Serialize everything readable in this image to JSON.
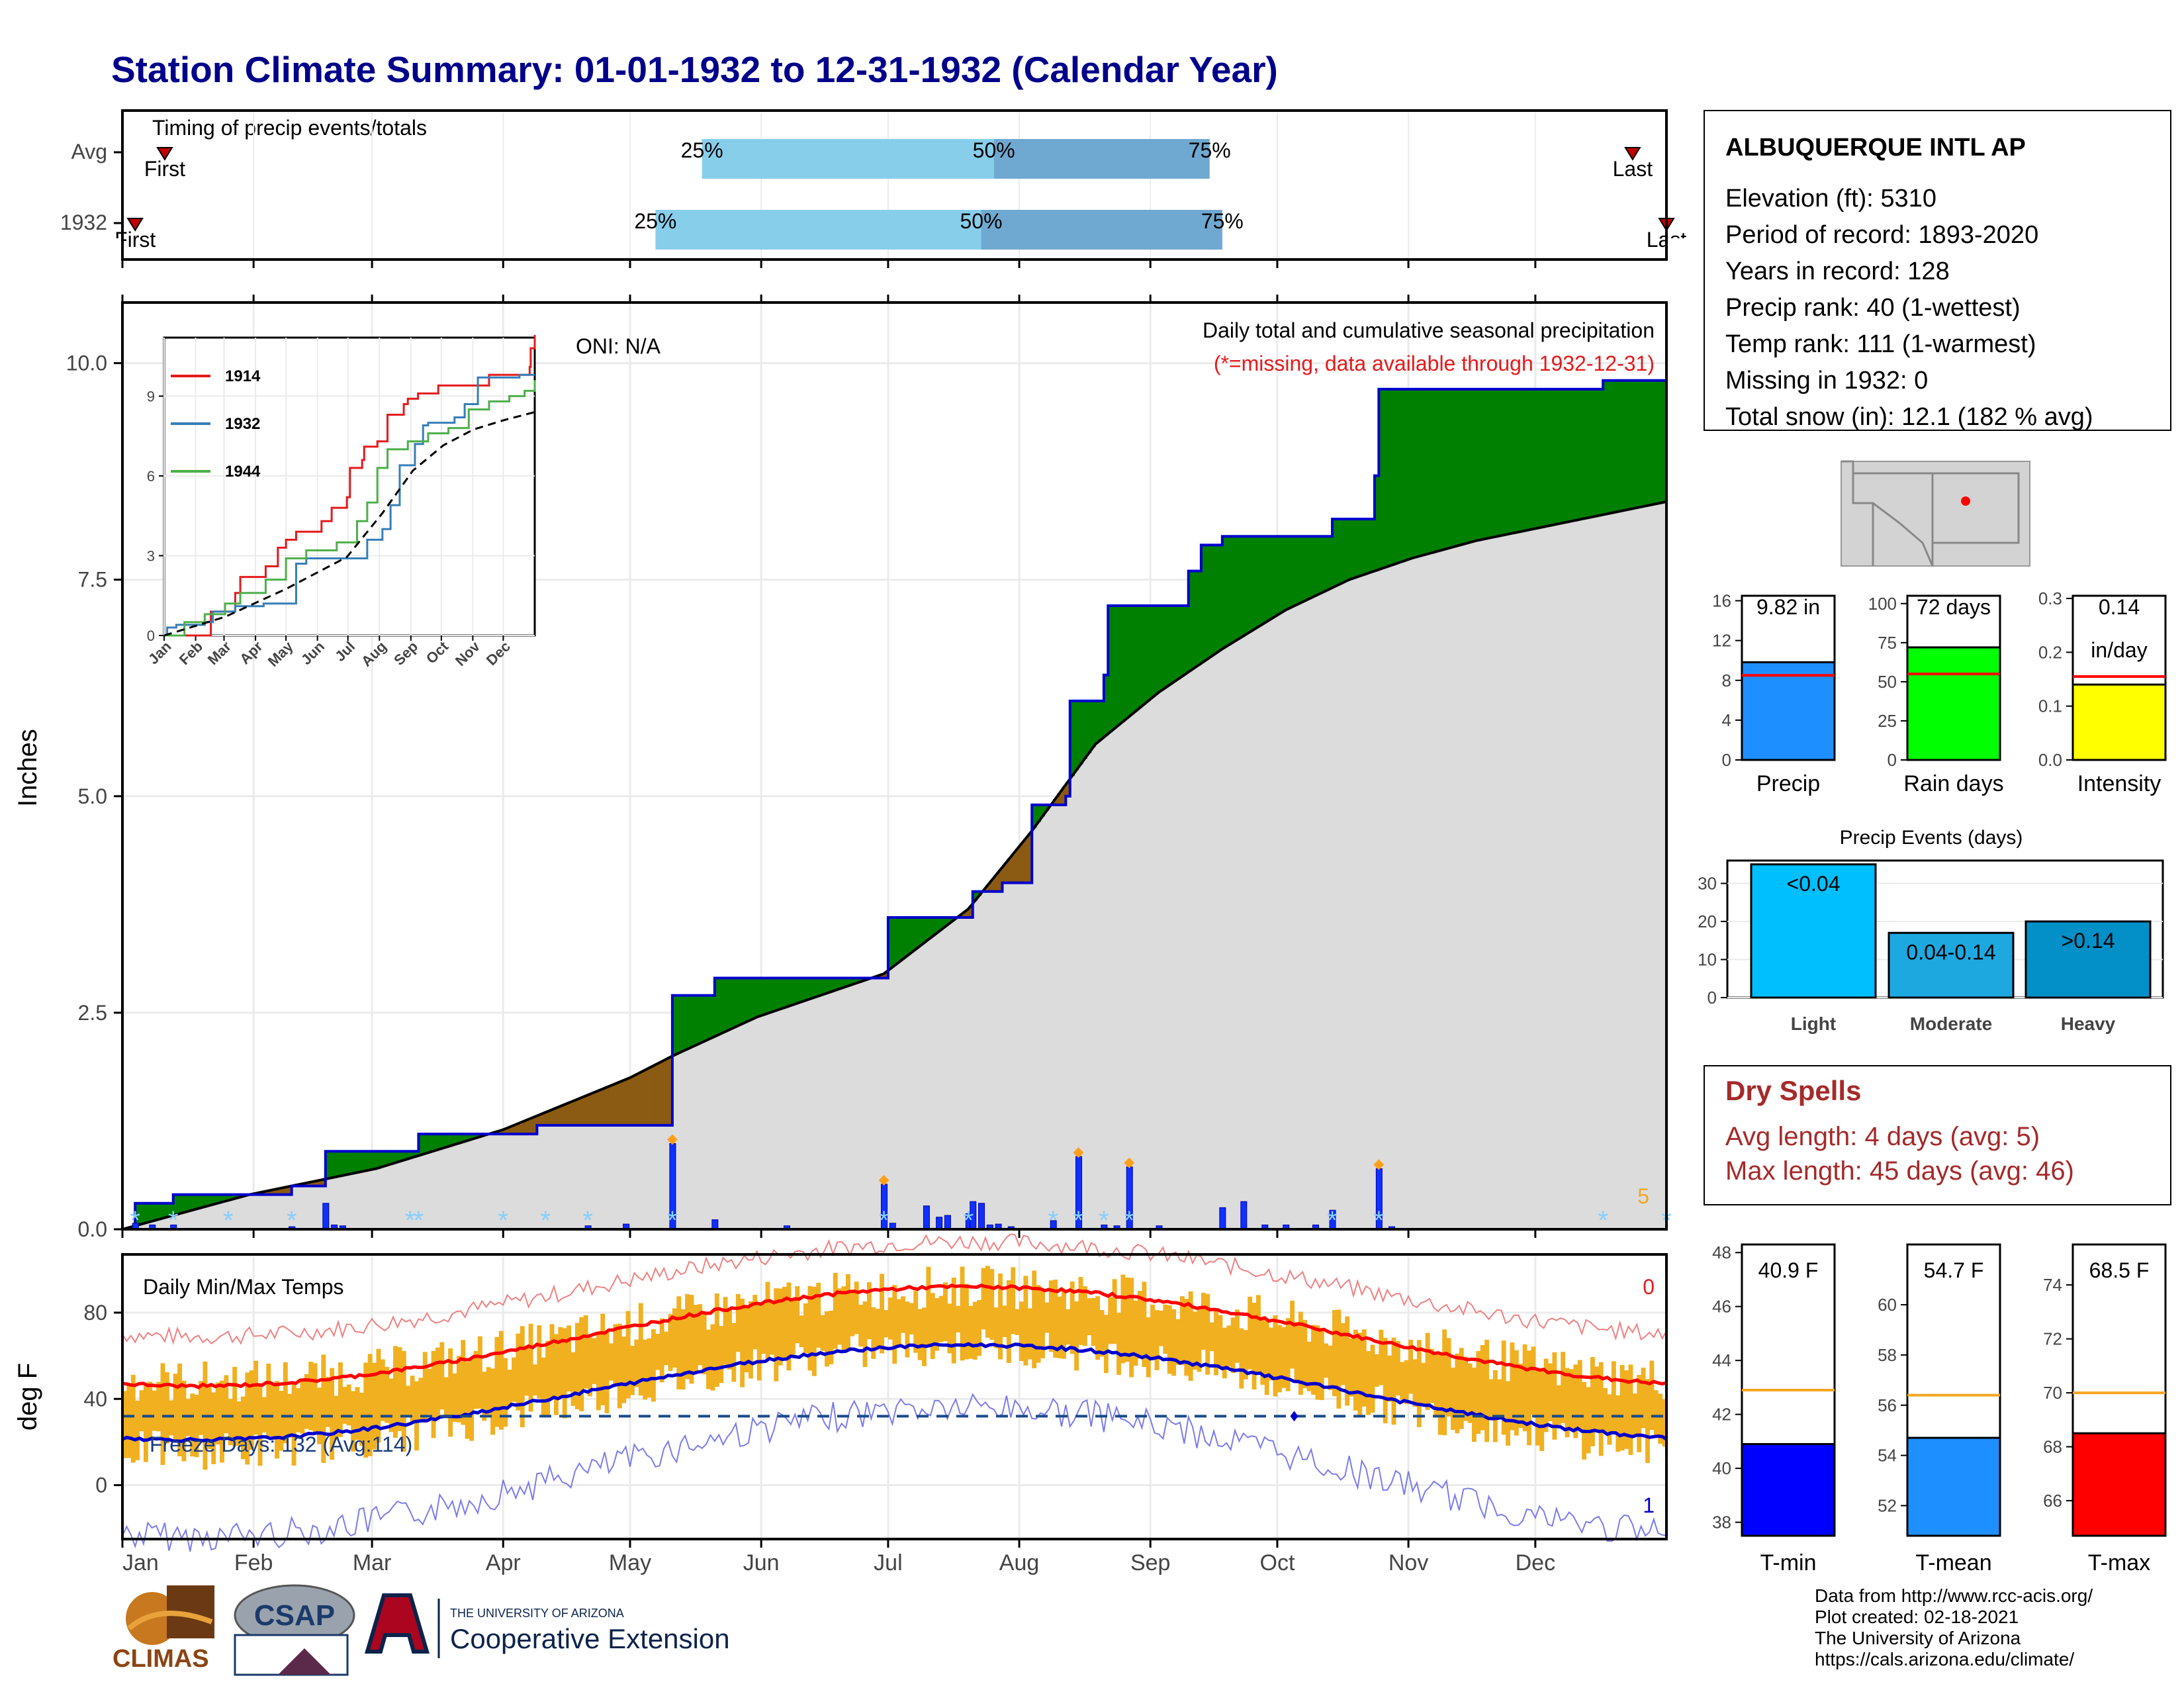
{
  "title": "Station Climate Summary: 01-01-1932 to 12-31-1932 (Calendar Year)",
  "timing": {
    "heading": "Timing of precip events/totals",
    "rows": [
      {
        "label": "Avg",
        "first_day": 10,
        "p25_day": 137,
        "p50_day": 206,
        "p75_day": 257,
        "last_day": 357,
        "first_label": "First",
        "last_label": "Last"
      },
      {
        "label": "1932",
        "first_day": 3,
        "p25_day": 126,
        "p50_day": 203,
        "p75_day": 260,
        "last_day": 365,
        "first_label": "First",
        "last_label": "Last"
      }
    ],
    "pct_labels": [
      "25%",
      "50%",
      "75%"
    ]
  },
  "main_chart": {
    "ylabel": "Inches",
    "yticks": [
      "0.0",
      "2.5",
      "5.0",
      "7.5",
      "10.0"
    ],
    "ylim": [
      0,
      10.7
    ],
    "oni": "ONI: N/A",
    "caption": "Daily total and cumulative seasonal precipitation",
    "missing_note": "(*=missing, data available through 1932-12-31)",
    "corner_count": "5"
  },
  "chart_data": {
    "type": "area",
    "series": [
      {
        "name": "1932 cumulative precipitation (in)",
        "x_day": [
          0,
          3,
          12,
          40,
          48,
          60,
          70,
          80,
          98,
          130,
          131,
          140,
          180,
          181,
          200,
          201,
          208,
          215,
          223,
          224,
          232,
          233,
          247,
          252,
          255,
          260,
          286,
          296,
          297,
          306,
          309,
          347,
          350,
          365
        ],
        "y": [
          0.0,
          0.3,
          0.4,
          0.5,
          0.9,
          0.9,
          1.1,
          1.1,
          1.2,
          2.7,
          2.7,
          2.9,
          2.9,
          3.6,
          3.6,
          3.9,
          4.0,
          4.9,
          5.0,
          6.1,
          6.4,
          7.2,
          7.2,
          7.6,
          7.9,
          8.0,
          8.2,
          8.7,
          9.7,
          9.7,
          9.7,
          9.7,
          9.8,
          9.8
        ]
      },
      {
        "name": "Average cumulative precipitation (in)",
        "x_day": [
          0,
          30,
          60,
          90,
          120,
          130,
          150,
          180,
          200,
          215,
          230,
          245,
          260,
          275,
          290,
          305,
          320,
          335,
          350,
          365
        ],
        "y": [
          0.0,
          0.4,
          0.7,
          1.15,
          1.75,
          2.0,
          2.45,
          2.95,
          3.7,
          4.6,
          5.6,
          6.2,
          6.7,
          7.15,
          7.5,
          7.75,
          7.95,
          8.1,
          8.25,
          8.4
        ]
      }
    ],
    "daily_precip_bars": {
      "x_day": [
        3,
        7,
        12,
        40,
        48,
        50,
        52,
        110,
        119,
        130,
        140,
        157,
        180,
        182,
        190,
        193,
        195,
        200,
        201,
        203,
        205,
        207,
        210,
        220,
        226,
        232,
        235,
        238,
        245,
        260,
        265,
        270,
        275,
        282,
        286,
        297,
        300
      ],
      "y": [
        0.07,
        0.05,
        0.05,
        0.03,
        0.3,
        0.05,
        0.04,
        0.04,
        0.06,
        0.99,
        0.11,
        0.04,
        0.52,
        0.07,
        0.27,
        0.14,
        0.16,
        0.18,
        0.32,
        0.3,
        0.05,
        0.06,
        0.03,
        0.1,
        0.84,
        0.05,
        0.04,
        0.72,
        0.04,
        0.25,
        0.32,
        0.05,
        0.05,
        0.05,
        0.22,
        0.7,
        0.03
      ]
    },
    "xticks": [
      "Jan",
      "Feb",
      "Mar",
      "Apr",
      "May",
      "Jun",
      "Jul",
      "Aug",
      "Sep",
      "Oct",
      "Nov",
      "Dec"
    ]
  },
  "inset": {
    "yticks": [
      "0",
      "3",
      "6",
      "9"
    ],
    "xticks": [
      "Jan",
      "Feb",
      "Mar",
      "Apr",
      "May",
      "Jun",
      "Jul",
      "Aug",
      "Sep",
      "Oct",
      "Nov",
      "Dec"
    ],
    "legend": [
      {
        "name": "1914",
        "color": "#e41a1c"
      },
      {
        "name": "1932",
        "color": "#377eb8"
      },
      {
        "name": "1944",
        "color": "#4daf4a"
      }
    ],
    "series": [
      {
        "name": "1914",
        "x": [
          0,
          25,
          45,
          46,
          70,
          75,
          100,
          112,
          120,
          130,
          150,
          155,
          165,
          180,
          183,
          195,
          197,
          210,
          220,
          236,
          240,
          250,
          255,
          270,
          300,
          320,
          340,
          360,
          361,
          365
        ],
        "y": [
          0,
          0,
          0,
          0.9,
          1.6,
          2.2,
          2.6,
          3.3,
          3.6,
          3.9,
          3.9,
          4.3,
          4.8,
          5.2,
          6.3,
          6.6,
          7.1,
          7.3,
          8.3,
          8.7,
          8.9,
          9.1,
          9.1,
          9.4,
          9.4,
          9.8,
          9.8,
          10.1,
          10.8,
          11.3
        ]
      },
      {
        "name": "1932",
        "x": [
          0,
          3,
          12,
          40,
          48,
          70,
          98,
          130,
          140,
          180,
          200,
          215,
          223,
          232,
          247,
          255,
          260,
          286,
          296,
          309,
          350,
          365
        ],
        "y": [
          0,
          0.3,
          0.4,
          0.5,
          0.9,
          1.1,
          1.2,
          2.7,
          2.9,
          2.9,
          3.6,
          4.0,
          4.9,
          6.4,
          7.2,
          7.9,
          8.0,
          8.2,
          8.7,
          9.7,
          9.8,
          9.8
        ]
      },
      {
        "name": "1944",
        "x": [
          0,
          20,
          40,
          60,
          75,
          100,
          120,
          140,
          170,
          190,
          200,
          210,
          220,
          240,
          260,
          280,
          300,
          320,
          340,
          355,
          365
        ],
        "y": [
          0,
          0.5,
          0.8,
          1.2,
          1.6,
          2.1,
          2.9,
          3.2,
          3.5,
          4.3,
          5.0,
          6.3,
          7.0,
          7.3,
          7.6,
          7.8,
          8.5,
          8.8,
          9.0,
          9.2,
          9.6
        ]
      },
      {
        "name": "avg",
        "x": [
          0,
          60,
          120,
          180,
          215,
          245,
          275,
          305,
          335,
          365
        ],
        "y": [
          0,
          0.7,
          1.75,
          2.95,
          4.6,
          6.2,
          7.15,
          7.75,
          8.1,
          8.4
        ]
      }
    ]
  },
  "station": {
    "name": "ALBUQUERQUE INTL AP",
    "lines": [
      "Elevation (ft): 5310",
      "Period of record: 1893-2020",
      "Years in record: 128",
      "Precip rank: 40 (1-wettest)",
      "Temp rank: 111 (1-warmest)",
      "Missing in 1932: 0",
      "Total snow (in): 12.1 (182 % avg)"
    ]
  },
  "small_bars": [
    {
      "label": "Precip",
      "value": 9.82,
      "avg": 8.5,
      "max": 16.5,
      "ticks": [
        0,
        4,
        8,
        12,
        16
      ],
      "text": "9.82 in",
      "color": "#1e8fff"
    },
    {
      "label": "Rain days",
      "value": 72,
      "avg": 55,
      "max": 105,
      "ticks": [
        0,
        25,
        50,
        75,
        100
      ],
      "text": "72 days",
      "color": "#00ff00"
    },
    {
      "label": "Intensity",
      "value": 0.14,
      "avg": 0.155,
      "max": 0.305,
      "ticks": [
        "0.0",
        "0.1",
        "0.2",
        "0.3"
      ],
      "tick_vals": [
        0,
        0.1,
        0.2,
        0.3
      ],
      "text": "0.14",
      "text2": "in/day",
      "color": "#ffff00"
    }
  ],
  "events": {
    "title": "Precip Events (days)",
    "categories": [
      "Light",
      "Moderate",
      "Heavy"
    ],
    "labels": [
      "<0.04",
      "0.04-0.14",
      ">0.14"
    ],
    "values": [
      35,
      17,
      20
    ],
    "yticks": [
      0,
      10,
      20,
      30
    ],
    "colors": [
      "#00bfff",
      "#1ea8e0",
      "#0390c8"
    ]
  },
  "dry_spells": {
    "title": "Dry Spells",
    "avg": "Avg length: 4 days (avg: 5)",
    "max": "Max length: 45 days (avg: 46)"
  },
  "temp_chart": {
    "ylabel": "deg F",
    "title": "Daily Min/Max Temps",
    "freeze": "Freeze Days: 132 (Avg:114)",
    "count_hot": "0",
    "count_cold": "1",
    "yticks": [
      "0",
      "40",
      "80"
    ],
    "xticks": [
      "Jan",
      "Feb",
      "Mar",
      "Apr",
      "May",
      "Jun",
      "Jul",
      "Aug",
      "Sep",
      "Oct",
      "Nov",
      "Dec"
    ]
  },
  "temp_bars": [
    {
      "label": "T-min",
      "value": 40.9,
      "avg": 42.9,
      "min": 37.5,
      "max": 48.3,
      "ticks": [
        38,
        40,
        42,
        44,
        46,
        48
      ],
      "text": "40.9 F",
      "color": "#0000ff"
    },
    {
      "label": "T-mean",
      "value": 54.7,
      "avg": 56.4,
      "min": 50.8,
      "max": 62.4,
      "ticks": [
        52,
        54,
        56,
        58,
        60
      ],
      "text": "54.7 F",
      "color": "#1e8fff"
    },
    {
      "label": "T-max",
      "value": 68.5,
      "avg": 70.0,
      "min": 64.7,
      "max": 75.5,
      "ticks": [
        66,
        68,
        70,
        72,
        74
      ],
      "text": "68.5 F",
      "color": "#ff0000"
    }
  ],
  "footer": {
    "lines": [
      "Data from http://www.rcc-acis.org/",
      "Plot created: 02-18-2021",
      "The University of Arizona",
      "https://cals.arizona.edu/climate/"
    ],
    "logo_climas": "CLIMAS",
    "logo_csap": "CSAP",
    "ua_small": "THE UNIVERSITY OF ARIZONA",
    "ua_big": "Cooperative Extension"
  },
  "colors": {
    "title": "#00008b",
    "green_fill": "#008000",
    "brown_fill": "#8b5a13",
    "grey_fill": "#dcdcdc",
    "cum_line": "#0000cd",
    "temp_bar": "#f0b020",
    "red": "#e41a1c",
    "blue": "#0000cd",
    "dry": "#a52a2a"
  }
}
